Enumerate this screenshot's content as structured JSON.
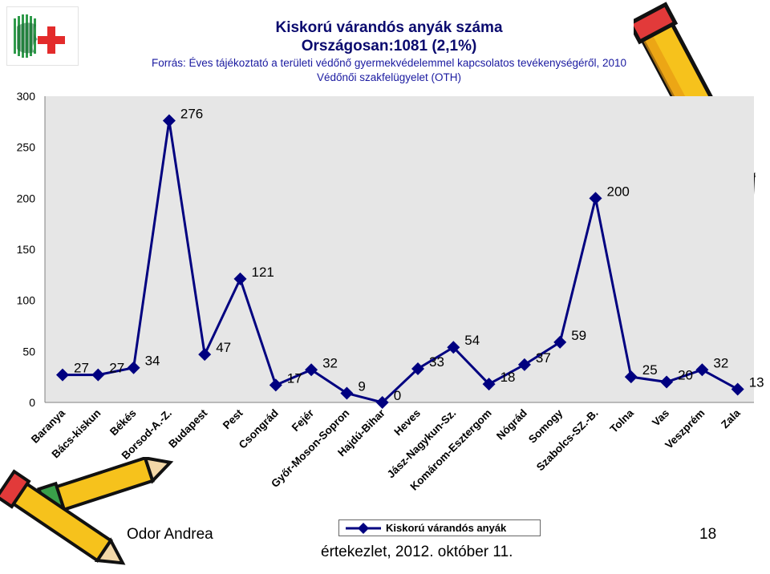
{
  "header": {
    "title": "Kiskorú várandós anyák száma",
    "subtitle": "Országosan:1081 (2,1%)",
    "source_line1": "Forrás: Éves tájékoztató a területi védőnő gyermekvédelemmel kapcsolatos tevékenységéről, 2010",
    "source_line2": "Védőnői szakfelügyelet (OTH)"
  },
  "footer": {
    "author": "Odor Andrea",
    "event": "értekezlet, 2012. október 11.",
    "page": "18"
  },
  "colors": {
    "plot_bg": "#e6e6e6",
    "line": "#000080",
    "marker": "#000080"
  },
  "chart_data": {
    "type": "line",
    "categories": [
      "Baranya",
      "Bács-kiskun",
      "Békés",
      "Borsod-A.-Z.",
      "Budapest",
      "Pest",
      "Csongrád",
      "Fejér",
      "Győr-Moson-Sopron",
      "Hajdú-Bihar",
      "Heves",
      "Jász-Nagykun-Sz.",
      "Komárom-Esztergom",
      "Nógrád",
      "Somogy",
      "Szabolcs-SZ.-B.",
      "Tolna",
      "Vas",
      "Veszprém",
      "Zala"
    ],
    "series": [
      {
        "name": "Kiskorú várandós anyák",
        "values": [
          27,
          27,
          34,
          276,
          47,
          121,
          17,
          32,
          9,
          0,
          33,
          54,
          18,
          37,
          59,
          200,
          25,
          20,
          32,
          13
        ]
      }
    ],
    "y_ticks": [
      0,
      50,
      100,
      150,
      200,
      250,
      300
    ],
    "ylim": [
      0,
      300
    ],
    "grid": false,
    "legend_position": "bottom",
    "data_labels": true
  }
}
